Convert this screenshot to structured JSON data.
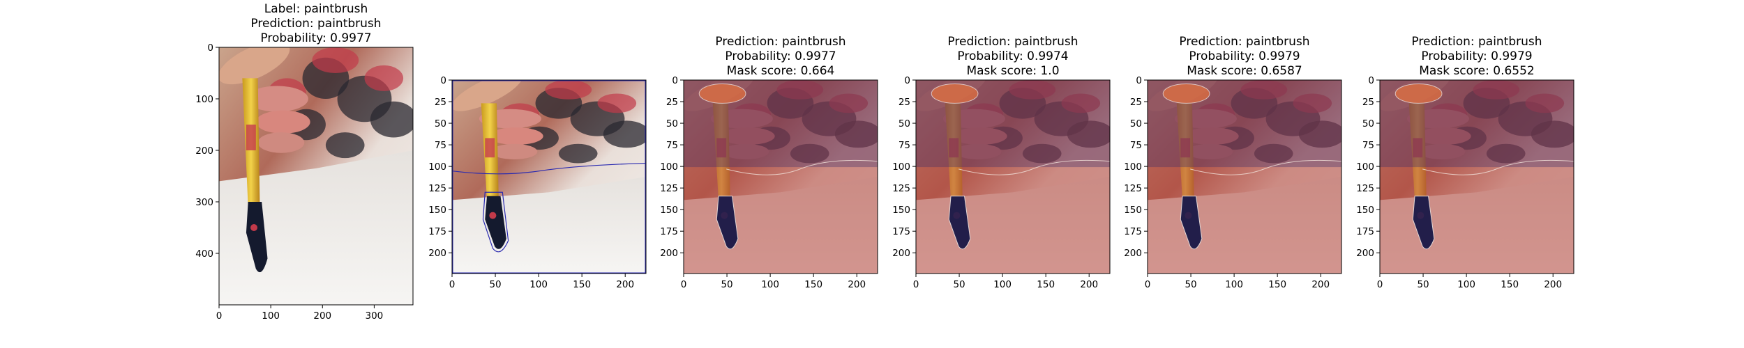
{
  "chart_data": [
    {
      "type": "image",
      "title_lines": [
        "Label: paintbrush",
        "Prediction: paintbrush",
        "Probability: 0.9977"
      ],
      "x_ticks": [
        0,
        100,
        200,
        300
      ],
      "y_ticks": [
        0,
        100,
        200,
        300,
        400
      ],
      "xlim": [
        0,
        375
      ],
      "ylim": [
        500,
        0
      ],
      "overlay": "none"
    },
    {
      "type": "image",
      "title_lines": [],
      "x_ticks": [
        0,
        50,
        100,
        150,
        200
      ],
      "y_ticks": [
        0,
        25,
        50,
        75,
        100,
        125,
        150,
        175,
        200
      ],
      "xlim": [
        0,
        224
      ],
      "ylim": [
        224,
        0
      ],
      "overlay": "contour"
    },
    {
      "type": "image",
      "title_lines": [
        "Prediction: paintbrush",
        "Probability: 0.9977",
        "Mask score: 0.664"
      ],
      "x_ticks": [
        0,
        50,
        100,
        150,
        200
      ],
      "y_ticks": [
        0,
        25,
        50,
        75,
        100,
        125,
        150,
        175,
        200
      ],
      "xlim": [
        0,
        224
      ],
      "ylim": [
        224,
        0
      ],
      "overlay": "mask"
    },
    {
      "type": "image",
      "title_lines": [
        "Prediction: paintbrush",
        "Probability: 0.9974",
        "Mask score: 1.0"
      ],
      "x_ticks": [
        0,
        50,
        100,
        150,
        200
      ],
      "y_ticks": [
        0,
        25,
        50,
        75,
        100,
        125,
        150,
        175,
        200
      ],
      "xlim": [
        0,
        224
      ],
      "ylim": [
        224,
        0
      ],
      "overlay": "mask"
    },
    {
      "type": "image",
      "title_lines": [
        "Prediction: paintbrush",
        "Probability: 0.9979",
        "Mask score: 0.6587"
      ],
      "x_ticks": [
        0,
        50,
        100,
        150,
        200
      ],
      "y_ticks": [
        0,
        25,
        50,
        75,
        100,
        125,
        150,
        175,
        200
      ],
      "xlim": [
        0,
        224
      ],
      "ylim": [
        224,
        0
      ],
      "overlay": "mask"
    },
    {
      "type": "image",
      "title_lines": [
        "Prediction: paintbrush",
        "Probability: 0.9979",
        "Mask score: 0.6552"
      ],
      "x_ticks": [
        0,
        50,
        100,
        150,
        200
      ],
      "y_ticks": [
        0,
        25,
        50,
        75,
        100,
        125,
        150,
        175,
        200
      ],
      "xlim": [
        0,
        224
      ],
      "ylim": [
        224,
        0
      ],
      "overlay": "mask"
    }
  ],
  "colors": {
    "mask_overlay": "#b4463c",
    "contour": "#2b2bb0",
    "canvas_bg": "#ffffff"
  }
}
